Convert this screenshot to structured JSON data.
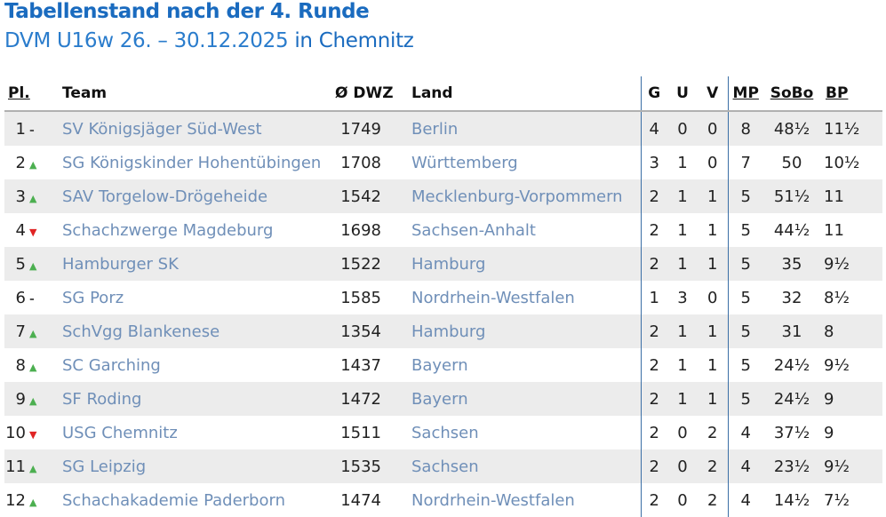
{
  "title": "Tabellenstand nach der 4. Runde",
  "subtitle_event": "DVM U16w 26. – 30.12.2025",
  "subtitle_place": "in Chemnitz",
  "headers": {
    "pl": "Pl.",
    "team": "Team",
    "dwz": "Ø DWZ",
    "land": "Land",
    "g": "G",
    "u": "U",
    "v": "V",
    "mp": "MP",
    "sobo": "SoBo",
    "bp": "BP"
  },
  "trend_icons": {
    "up": "▲",
    "down": "▼",
    "same": "-"
  },
  "rows": [
    {
      "pl": "1",
      "trend": "same",
      "team": "SV Königsjäger Süd-West",
      "dwz": "1749",
      "land": "Berlin",
      "g": "4",
      "u": "0",
      "v": "0",
      "mp": "8",
      "sobo": "48½",
      "bp": "11½"
    },
    {
      "pl": "2",
      "trend": "up",
      "team": "SG Königskinder Hohentübingen",
      "dwz": "1708",
      "land": "Württemberg",
      "g": "3",
      "u": "1",
      "v": "0",
      "mp": "7",
      "sobo": "50",
      "bp": "10½"
    },
    {
      "pl": "3",
      "trend": "up",
      "team": "SAV Torgelow-Drögeheide",
      "dwz": "1542",
      "land": "Mecklenburg-Vorpommern",
      "g": "2",
      "u": "1",
      "v": "1",
      "mp": "5",
      "sobo": "51½",
      "bp": "11"
    },
    {
      "pl": "4",
      "trend": "down",
      "team": "Schachzwerge Magdeburg",
      "dwz": "1698",
      "land": "Sachsen-Anhalt",
      "g": "2",
      "u": "1",
      "v": "1",
      "mp": "5",
      "sobo": "44½",
      "bp": "11"
    },
    {
      "pl": "5",
      "trend": "up",
      "team": "Hamburger SK",
      "dwz": "1522",
      "land": "Hamburg",
      "g": "2",
      "u": "1",
      "v": "1",
      "mp": "5",
      "sobo": "35",
      "bp": "9½"
    },
    {
      "pl": "6",
      "trend": "same",
      "team": "SG Porz",
      "dwz": "1585",
      "land": "Nordrhein-Westfalen",
      "g": "1",
      "u": "3",
      "v": "0",
      "mp": "5",
      "sobo": "32",
      "bp": "8½"
    },
    {
      "pl": "7",
      "trend": "up",
      "team": "SchVgg Blankenese",
      "dwz": "1354",
      "land": "Hamburg",
      "g": "2",
      "u": "1",
      "v": "1",
      "mp": "5",
      "sobo": "31",
      "bp": "8"
    },
    {
      "pl": "8",
      "trend": "up",
      "team": "SC Garching",
      "dwz": "1437",
      "land": "Bayern",
      "g": "2",
      "u": "1",
      "v": "1",
      "mp": "5",
      "sobo": "24½",
      "bp": "9½"
    },
    {
      "pl": "9",
      "trend": "up",
      "team": "SF Roding",
      "dwz": "1472",
      "land": "Bayern",
      "g": "2",
      "u": "1",
      "v": "1",
      "mp": "5",
      "sobo": "24½",
      "bp": "9"
    },
    {
      "pl": "10",
      "trend": "down",
      "team": "USG Chemnitz",
      "dwz": "1511",
      "land": "Sachsen",
      "g": "2",
      "u": "0",
      "v": "2",
      "mp": "4",
      "sobo": "37½",
      "bp": "9"
    },
    {
      "pl": "11",
      "trend": "up",
      "team": "SG Leipzig",
      "dwz": "1535",
      "land": "Sachsen",
      "g": "2",
      "u": "0",
      "v": "2",
      "mp": "4",
      "sobo": "23½",
      "bp": "9½"
    },
    {
      "pl": "12",
      "trend": "up",
      "team": "Schachakademie Paderborn",
      "dwz": "1474",
      "land": "Nordrhein-Westfalen",
      "g": "2",
      "u": "0",
      "v": "2",
      "mp": "4",
      "sobo": "14½",
      "bp": "7½"
    }
  ]
}
